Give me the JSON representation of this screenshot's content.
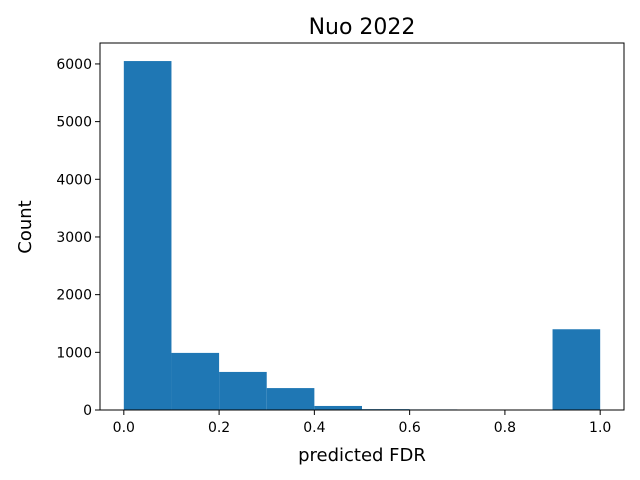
{
  "chart_data": {
    "type": "histogram",
    "title": "Nuo 2022",
    "xlabel": "predicted FDR",
    "ylabel": "Count",
    "bins": [
      0,
      0.1,
      0.2,
      0.3,
      0.4,
      0.5,
      0.6,
      0.7,
      0.8,
      0.9,
      1.0
    ],
    "counts": [
      6050,
      990,
      660,
      380,
      70,
      15,
      10,
      0,
      0,
      1400
    ],
    "color": "#1f77b4",
    "xlim": [
      -0.05,
      1.05
    ],
    "xticks": [
      {
        "value": 0,
        "label": "0.0"
      },
      0.2,
      0.4,
      0.6,
      0.8,
      {
        "value": 1,
        "label": "1.0"
      }
    ],
    "ylim": [
      0,
      6363
    ],
    "yticks": [
      0,
      1000,
      2000,
      3000,
      4000,
      5000,
      6000
    ],
    "grid": false
  }
}
